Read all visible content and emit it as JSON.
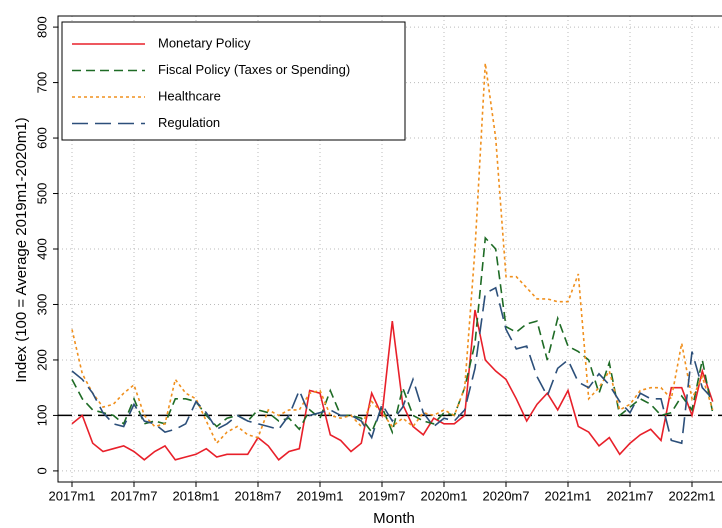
{
  "chart_data": {
    "type": "line",
    "y_axis_label": "Index (100 = Average 2019m1-2020m1)",
    "x_axis_label": "Month",
    "categories": [
      "2017m1",
      null,
      null,
      null,
      null,
      null,
      "2017m7",
      null,
      null,
      null,
      null,
      null,
      "2018m1",
      null,
      null,
      null,
      null,
      null,
      "2018m7",
      null,
      null,
      null,
      null,
      null,
      "2019m1",
      null,
      null,
      null,
      null,
      null,
      "2019m7",
      null,
      null,
      null,
      null,
      null,
      "2020m1",
      null,
      null,
      null,
      null,
      null,
      "2020m7",
      null,
      null,
      null,
      null,
      null,
      "2021m1",
      null,
      null,
      null,
      null,
      null,
      "2021m7",
      null,
      null,
      null,
      null,
      null,
      "2022m1",
      null,
      null
    ],
    "ylim": [
      -20,
      820
    ],
    "yticks": [
      0,
      100,
      200,
      300,
      400,
      500,
      600,
      700,
      800
    ],
    "grid": true,
    "reference_line": 100,
    "legend_position": "upper-left",
    "series": [
      {
        "name": "Monetary Policy",
        "color": "#e8202a",
        "style": "solid",
        "values": [
          85,
          100,
          50,
          35,
          40,
          45,
          35,
          20,
          35,
          45,
          20,
          25,
          30,
          40,
          25,
          30,
          30,
          30,
          60,
          45,
          20,
          35,
          40,
          145,
          140,
          65,
          55,
          35,
          50,
          140,
          100,
          270,
          120,
          80,
          65,
          95,
          85,
          85,
          100,
          290,
          200,
          180,
          165,
          130,
          90,
          120,
          140,
          110,
          145,
          80,
          70,
          45,
          60,
          30,
          50,
          65,
          75,
          55,
          150,
          150,
          100,
          180,
          125
        ]
      },
      {
        "name": "Fiscal Policy (Taxes or Spending)",
        "color": "#1e6b25",
        "style": "dashed",
        "values": [
          165,
          130,
          110,
          105,
          100,
          85,
          130,
          85,
          90,
          85,
          130,
          130,
          125,
          100,
          80,
          95,
          100,
          90,
          110,
          105,
          90,
          95,
          75,
          110,
          95,
          145,
          100,
          100,
          95,
          70,
          115,
          70,
          150,
          100,
          90,
          85,
          105,
          100,
          150,
          230,
          420,
          400,
          260,
          250,
          265,
          270,
          200,
          275,
          225,
          215,
          200,
          140,
          195,
          100,
          115,
          130,
          120,
          100,
          105,
          135,
          110,
          200,
          105
        ]
      },
      {
        "name": "Healthcare",
        "color": "#f0901e",
        "style": "dotted",
        "values": [
          255,
          175,
          140,
          115,
          120,
          140,
          155,
          100,
          80,
          85,
          165,
          140,
          130,
          90,
          50,
          70,
          80,
          65,
          60,
          110,
          100,
          110,
          110,
          140,
          145,
          100,
          95,
          100,
          80,
          125,
          105,
          80,
          95,
          80,
          105,
          100,
          110,
          100,
          150,
          400,
          735,
          600,
          350,
          350,
          330,
          310,
          310,
          305,
          305,
          355,
          130,
          150,
          180,
          110,
          120,
          145,
          150,
          150,
          130,
          230,
          130,
          170,
          110
        ]
      },
      {
        "name": "Regulation",
        "color": "#2c4f7a",
        "style": "longdash",
        "values": [
          180,
          165,
          140,
          105,
          85,
          80,
          120,
          90,
          85,
          70,
          75,
          85,
          125,
          105,
          75,
          85,
          100,
          90,
          85,
          80,
          75,
          100,
          145,
          100,
          105,
          110,
          100,
          100,
          90,
          60,
          120,
          90,
          115,
          165,
          105,
          80,
          95,
          90,
          110,
          185,
          320,
          330,
          255,
          220,
          225,
          170,
          135,
          185,
          200,
          160,
          150,
          175,
          155,
          125,
          105,
          140,
          130,
          130,
          55,
          50,
          215,
          150,
          130
        ]
      }
    ]
  }
}
